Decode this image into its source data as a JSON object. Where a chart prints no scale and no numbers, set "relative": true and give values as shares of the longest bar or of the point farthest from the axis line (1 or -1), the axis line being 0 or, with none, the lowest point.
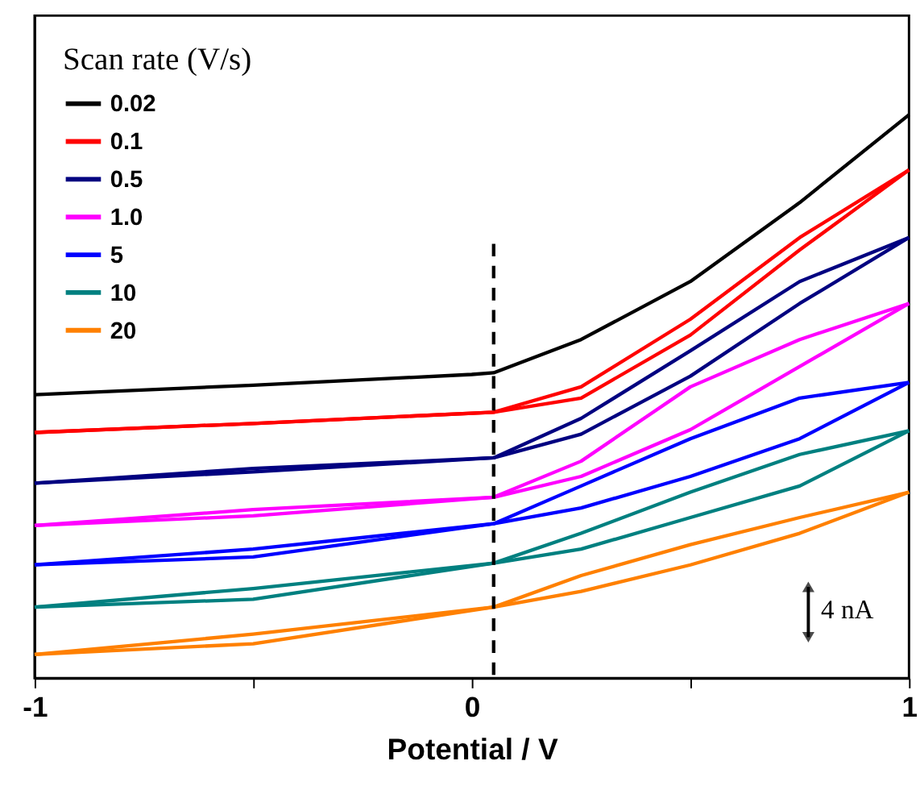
{
  "chart_data": {
    "type": "line",
    "relative": true,
    "xlabel": "Potential / V",
    "legend_title": "Scan rate (V/s)",
    "legend": "top left",
    "grid": false,
    "tick_labels": "x",
    "line_style": "solid",
    "marker": "none",
    "xlim": [
      -1,
      1
    ],
    "xticks": [
      -1,
      {
        "value": -0.5,
        "label": null
      },
      0,
      {
        "value": 0.5,
        "label": null
      },
      1
    ],
    "series": [
      {
        "name": "0.02",
        "color": "#000000",
        "x": [
          -1,
          -0.5,
          0,
          0.05,
          0.25,
          0.5,
          0.75,
          1
        ],
        "values": [
          0.503,
          0.52,
          0.539,
          0.542,
          0.601,
          0.704,
          0.844,
          1.0
        ]
      },
      {
        "name": "0.1",
        "color": "#ff0000",
        "x": [
          -1,
          -0.5,
          0.05,
          0.25,
          0.5,
          0.75,
          1
        ],
        "values": [
          0.436,
          0.452,
          0.472,
          0.497,
          0.609,
          0.76,
          0.902
        ]
      },
      {
        "color": "#ff0000",
        "x": [
          -1,
          -0.5,
          0.05,
          0.25,
          0.5,
          0.75,
          1
        ],
        "values": [
          0.436,
          0.452,
          0.472,
          0.517,
          0.637,
          0.782,
          0.902
        ]
      },
      {
        "name": "0.5",
        "color": "#000080",
        "x": [
          -1,
          -0.5,
          0.05,
          0.25,
          0.5,
          0.75,
          1
        ],
        "values": [
          0.346,
          0.366,
          0.391,
          0.433,
          0.536,
          0.665,
          0.782
        ]
      },
      {
        "color": "#000080",
        "x": [
          -1,
          -0.5,
          0.05,
          0.25,
          0.5,
          0.75,
          1
        ],
        "values": [
          0.346,
          0.372,
          0.391,
          0.461,
          0.581,
          0.704,
          0.782
        ]
      },
      {
        "name": "1.0",
        "color": "#ff00ff",
        "x": [
          -1,
          -0.5,
          0.05,
          0.25,
          0.5,
          0.75,
          1
        ],
        "values": [
          0.271,
          0.288,
          0.321,
          0.358,
          0.441,
          0.553,
          0.665
        ]
      },
      {
        "color": "#ff00ff",
        "x": [
          -1,
          -0.5,
          0.05,
          0.25,
          0.5,
          0.75,
          1
        ],
        "values": [
          0.271,
          0.299,
          0.321,
          0.385,
          0.517,
          0.601,
          0.665
        ]
      },
      {
        "name": "5",
        "color": "#0000ff",
        "x": [
          -1,
          -0.5,
          0.05,
          0.25,
          0.5,
          0.75,
          1
        ],
        "values": [
          0.201,
          0.215,
          0.274,
          0.302,
          0.358,
          0.425,
          0.525
        ]
      },
      {
        "color": "#0000ff",
        "x": [
          -1,
          -0.5,
          0.05,
          0.25,
          0.5,
          0.75,
          1
        ],
        "values": [
          0.201,
          0.229,
          0.274,
          0.341,
          0.425,
          0.497,
          0.525
        ]
      },
      {
        "name": "10",
        "color": "#008080",
        "x": [
          -1,
          -0.5,
          0.05,
          0.25,
          0.5,
          0.75,
          1
        ],
        "values": [
          0.126,
          0.14,
          0.204,
          0.229,
          0.285,
          0.341,
          0.439
        ]
      },
      {
        "color": "#008080",
        "x": [
          -1,
          -0.5,
          0.05,
          0.25,
          0.5,
          0.75,
          1
        ],
        "values": [
          0.126,
          0.159,
          0.204,
          0.257,
          0.33,
          0.397,
          0.439
        ]
      },
      {
        "name": "20",
        "color": "#ff8000",
        "x": [
          -1,
          -0.5,
          0.05,
          0.25,
          0.5,
          0.75,
          1
        ],
        "values": [
          0.042,
          0.061,
          0.126,
          0.154,
          0.201,
          0.257,
          0.33
        ]
      },
      {
        "color": "#ff8000",
        "x": [
          -1,
          -0.5,
          0.05,
          0.25,
          0.5,
          0.75,
          1
        ],
        "values": [
          0.042,
          0.078,
          0.126,
          0.182,
          0.237,
          0.285,
          0.33
        ]
      }
    ],
    "ref_lines": [
      {
        "axis": "x",
        "value": 0.05,
        "label": null,
        "color": "#000000",
        "line_style": "dashed"
      }
    ],
    "annotations": [
      "4 nA"
    ]
  }
}
